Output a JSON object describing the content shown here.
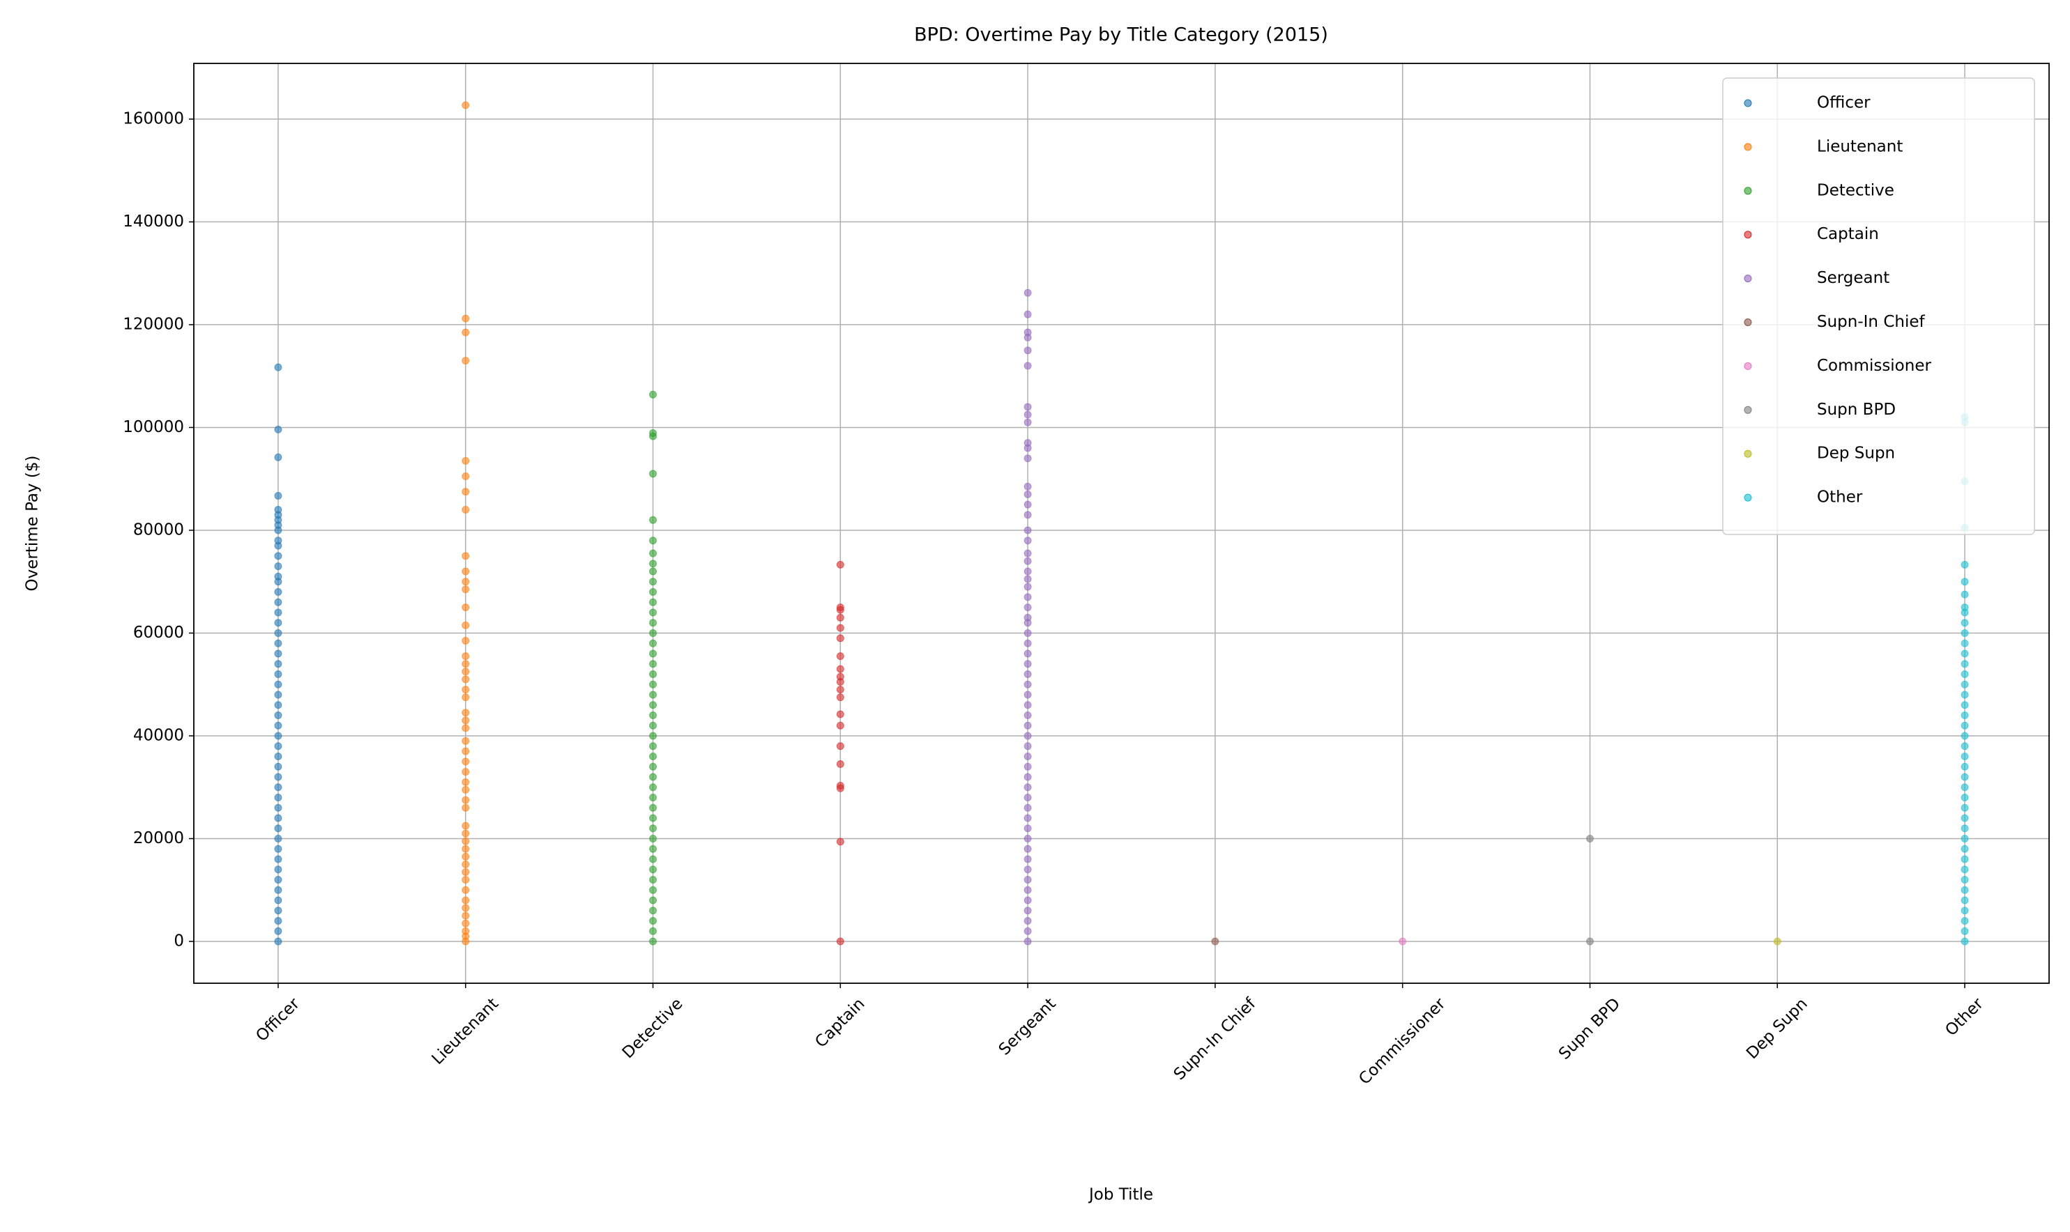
{
  "chart_data": {
    "type": "scatter",
    "title": "BPD: Overtime Pay by Title Category (2015)",
    "x_label": "Job Title",
    "y_label": "Overtime Pay ($)",
    "categories": [
      "Officer",
      "Lieutenant",
      "Detective",
      "Captain",
      "Sergeant",
      "Supn-In Chief",
      "Commissioner",
      "Supn BPD",
      "Dep Supn",
      "Other"
    ],
    "ylim": [
      -8135,
      170835
    ],
    "yticks": [
      0,
      20000,
      40000,
      60000,
      80000,
      100000,
      120000,
      140000,
      160000
    ],
    "grid": true,
    "legend": "upper right",
    "series": [
      {
        "name": "Officer",
        "color": "#1f77b4",
        "values": [
          0,
          2000,
          4000,
          6000,
          8000,
          10000,
          12000,
          14000,
          16000,
          18000,
          20000,
          22000,
          24000,
          26000,
          28000,
          30000,
          32000,
          34000,
          36000,
          38000,
          40000,
          42000,
          44000,
          46000,
          48000,
          50000,
          52000,
          54000,
          56000,
          58000,
          60000,
          62000,
          64000,
          66000,
          68000,
          70000,
          71000,
          73000,
          75000,
          77000,
          78000,
          80000,
          81000,
          82000,
          83000,
          84000,
          86700,
          94200,
          99600,
          111700
        ]
      },
      {
        "name": "Lieutenant",
        "color": "#ff7f0e",
        "values": [
          0,
          1000,
          2000,
          3500,
          5000,
          6500,
          8000,
          10000,
          12000,
          13500,
          15000,
          16500,
          18000,
          19500,
          21000,
          22500,
          26000,
          27500,
          29500,
          31000,
          33000,
          35000,
          37000,
          39000,
          41500,
          43000,
          44500,
          47500,
          49000,
          51000,
          52500,
          54000,
          55500,
          58500,
          61500,
          65000,
          68500,
          70000,
          72000,
          75000,
          84000,
          87500,
          90500,
          93500,
          113000,
          118500,
          121200,
          162700
        ]
      },
      {
        "name": "Detective",
        "color": "#2ca02c",
        "values": [
          0,
          2000,
          4000,
          6000,
          8000,
          10000,
          12000,
          14000,
          16000,
          18000,
          20000,
          22000,
          24000,
          26000,
          28000,
          30000,
          32000,
          34000,
          36000,
          38000,
          40000,
          42000,
          44000,
          46000,
          48000,
          50000,
          52000,
          54000,
          56000,
          58000,
          60000,
          62000,
          64000,
          66000,
          68000,
          70000,
          72000,
          73500,
          75500,
          78000,
          82000,
          91000,
          98300,
          98900,
          106400
        ]
      },
      {
        "name": "Captain",
        "color": "#d62728",
        "values": [
          0,
          19400,
          29800,
          30300,
          34500,
          38000,
          42000,
          44200,
          47500,
          49000,
          50500,
          51500,
          53000,
          55500,
          59000,
          61000,
          63000,
          64500,
          65000,
          73300
        ]
      },
      {
        "name": "Sergeant",
        "color": "#9467bd",
        "values": [
          0,
          2000,
          4000,
          6000,
          8000,
          10000,
          12000,
          14000,
          16000,
          18000,
          20000,
          22000,
          24000,
          26000,
          28000,
          30000,
          32000,
          34000,
          36000,
          38000,
          40000,
          42000,
          44000,
          46000,
          48000,
          50000,
          52000,
          54000,
          56000,
          58000,
          60000,
          62000,
          63000,
          65000,
          67000,
          69000,
          70500,
          72000,
          74000,
          75500,
          78000,
          80000,
          83000,
          85000,
          87000,
          88500,
          94000,
          96000,
          97000,
          101000,
          102500,
          104000,
          112000,
          115000,
          117500,
          118500,
          122000,
          126200
        ]
      },
      {
        "name": "Supn-In Chief",
        "color": "#8c564b",
        "values": [
          0
        ]
      },
      {
        "name": "Commissioner",
        "color": "#e377c2",
        "values": [
          0
        ]
      },
      {
        "name": "Supn BPD",
        "color": "#7f7f7f",
        "values": [
          0,
          20000
        ]
      },
      {
        "name": "Dep Supn",
        "color": "#bcbd22",
        "values": [
          0
        ]
      },
      {
        "name": "Other",
        "color": "#17becf",
        "values": [
          0,
          2000,
          4000,
          6000,
          8000,
          10000,
          12000,
          14000,
          16000,
          18000,
          20000,
          22000,
          24000,
          26000,
          28000,
          30000,
          32000,
          34000,
          36000,
          38000,
          40000,
          42000,
          44000,
          46000,
          48000,
          50000,
          52000,
          54000,
          56000,
          58000,
          60000,
          62000,
          64000,
          65000,
          67500,
          70000,
          73300,
          80500,
          89500,
          101000,
          102000
        ]
      }
    ]
  }
}
